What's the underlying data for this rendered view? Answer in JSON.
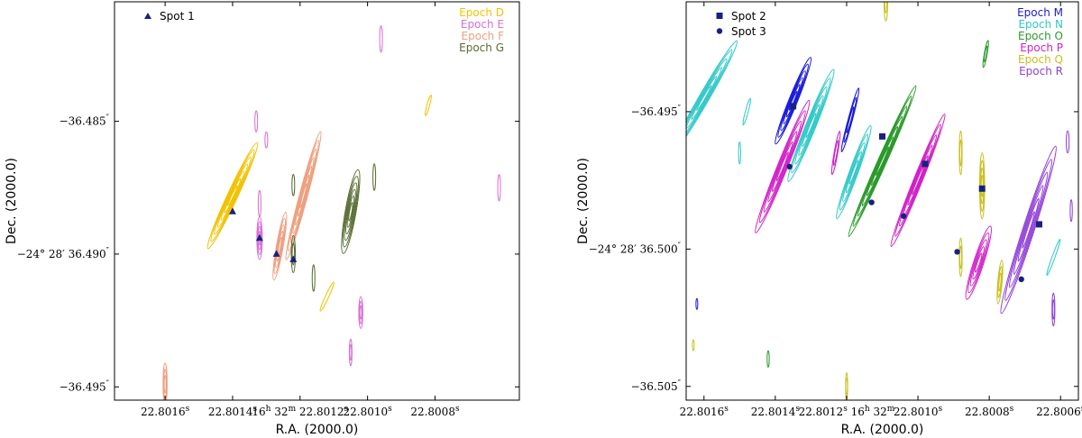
{
  "chart_data": [
    {
      "type": "scatter",
      "xlabel": "R.A. (2000.0)",
      "ylabel": "Dec. (2000.0)",
      "x_ticks": [
        {
          "main": "22.8016",
          "sup": "s"
        },
        {
          "main": "22.8014",
          "sup": "s"
        },
        {
          "main": "16",
          "sup": "h",
          "main2": " 32",
          "sup2": "m",
          "main3": " 22.8012",
          "sup3": "s"
        },
        {
          "main": "22.8010",
          "sup": "s"
        },
        {
          "main": "22.8008",
          "sup": "s"
        }
      ],
      "y_ticks": [
        {
          "main": "−36.485",
          "sup": "″"
        },
        {
          "main": "−24° 28′ 36.490",
          "sup": "″"
        },
        {
          "main": "−36.495",
          "sup": "″"
        }
      ],
      "xlim": [
        22.80175,
        22.80055
      ],
      "ylim": [
        -36.4955,
        -36.4805
      ],
      "legend": {
        "entries": [
          {
            "label": "Epoch D",
            "color": "#f2c200"
          },
          {
            "label": "Epoch E",
            "color": "#d86fd6"
          },
          {
            "label": "Epoch F",
            "color": "#eea080"
          },
          {
            "label": "Epoch G",
            "color": "#556b2f"
          }
        ],
        "marker_entries": [
          {
            "label": "Spot 1",
            "marker": "triangle",
            "color": "#1a2080"
          }
        ]
      },
      "spots": [
        {
          "name": "Spot 1",
          "marker": "triangle",
          "x": 22.8014,
          "y": -36.4884
        },
        {
          "name": "Spot 1",
          "marker": "triangle",
          "x": 22.80132,
          "y": -36.4894
        },
        {
          "name": "Spot 1",
          "marker": "triangle",
          "x": 22.80127,
          "y": -36.49
        },
        {
          "name": "Spot 1",
          "marker": "triangle",
          "x": 22.80122,
          "y": -36.4902
        }
      ],
      "contours": [
        {
          "color": "#f2c200",
          "x": 22.8014,
          "y": -36.4878,
          "rx": 1.5e-05,
          "ry": 0.0022,
          "angle": 25,
          "levels": 7
        },
        {
          "color": "#f2c200",
          "x": 22.80082,
          "y": -36.4844,
          "rx": 4e-06,
          "ry": 0.0004,
          "angle": 15,
          "levels": 1
        },
        {
          "color": "#f2c200",
          "x": 22.80112,
          "y": -36.4916,
          "rx": 5e-06,
          "ry": 0.0006,
          "angle": 25,
          "levels": 1
        },
        {
          "color": "#d86fd6",
          "x": 22.80132,
          "y": -36.4894,
          "rx": 8e-06,
          "ry": 0.0008,
          "angle": 0,
          "levels": 4
        },
        {
          "color": "#d86fd6",
          "x": 22.80133,
          "y": -36.485,
          "rx": 4e-06,
          "ry": 0.0004,
          "angle": 0,
          "levels": 1
        },
        {
          "color": "#d86fd6",
          "x": 22.8013,
          "y": -36.4857,
          "rx": 4e-06,
          "ry": 0.0003,
          "angle": 0,
          "levels": 1
        },
        {
          "color": "#d86fd6",
          "x": 22.80132,
          "y": -36.4881,
          "rx": 4e-06,
          "ry": 0.0005,
          "angle": 0,
          "levels": 1
        },
        {
          "color": "#d86fd6",
          "x": 22.80096,
          "y": -36.4819,
          "rx": 4e-06,
          "ry": 0.0005,
          "angle": 0,
          "levels": 1
        },
        {
          "color": "#d86fd6",
          "x": 22.80061,
          "y": -36.4875,
          "rx": 4e-06,
          "ry": 0.0005,
          "angle": 0,
          "levels": 1
        },
        {
          "color": "#d86fd6",
          "x": 22.80102,
          "y": -36.4922,
          "rx": 6e-06,
          "ry": 0.0006,
          "angle": 0,
          "levels": 3
        },
        {
          "color": "#d86fd6",
          "x": 22.80105,
          "y": -36.4937,
          "rx": 4e-06,
          "ry": 0.0005,
          "angle": 0,
          "levels": 2
        },
        {
          "color": "#eea080",
          "x": 22.80119,
          "y": -36.4878,
          "rx": 1.2e-05,
          "ry": 0.0025,
          "angle": 15,
          "levels": 7
        },
        {
          "color": "#eea080",
          "x": 22.80126,
          "y": -36.4897,
          "rx": 1e-05,
          "ry": 0.0013,
          "angle": 10,
          "levels": 5
        },
        {
          "color": "#eea080",
          "x": 22.8016,
          "y": -36.4949,
          "rx": 6e-06,
          "ry": 0.0008,
          "angle": 0,
          "levels": 3
        },
        {
          "color": "#556b2f",
          "x": 22.80105,
          "y": -36.4884,
          "rx": 1.6e-05,
          "ry": 0.0016,
          "angle": 10,
          "levels": 6
        },
        {
          "color": "#556b2f",
          "x": 22.80122,
          "y": -36.4874,
          "rx": 4e-06,
          "ry": 0.0004,
          "angle": 0,
          "levels": 1
        },
        {
          "color": "#556b2f",
          "x": 22.80098,
          "y": -36.4871,
          "rx": 4e-06,
          "ry": 0.0005,
          "angle": 0,
          "levels": 1
        },
        {
          "color": "#556b2f",
          "x": 22.80122,
          "y": -36.49,
          "rx": 6e-06,
          "ry": 0.0007,
          "angle": 0,
          "levels": 2
        },
        {
          "color": "#556b2f",
          "x": 22.80116,
          "y": -36.4909,
          "rx": 4e-06,
          "ry": 0.0005,
          "angle": 0,
          "levels": 1
        }
      ]
    },
    {
      "type": "scatter",
      "xlabel": "R.A. (2000.0)",
      "ylabel": "Dec. (2000.0)",
      "x_ticks": [
        {
          "main": "22.8016",
          "sup": "s"
        },
        {
          "main": "22.8014",
          "sup": "s"
        },
        {
          "main": "22.8012",
          "sup": "s",
          "main2": " 16",
          "sup2": "h",
          "main3": " 32",
          "sup3": "m"
        },
        {
          "main": "22.8010",
          "sup": "s"
        },
        {
          "main": "22.8008",
          "sup": "s"
        },
        {
          "main": "22.8006",
          "sup": "s"
        }
      ],
      "y_ticks": [
        {
          "main": "−36.495",
          "sup": "″"
        },
        {
          "main": "−24° 28′ 36.500",
          "sup": "″"
        },
        {
          "main": "−36.505",
          "sup": "″"
        }
      ],
      "xlim": [
        22.80165,
        22.80055
      ],
      "ylim": [
        -36.5055,
        -36.491
      ],
      "legend": {
        "entries": [
          {
            "label": "Epoch M",
            "color": "#1a1adb"
          },
          {
            "label": "Epoch N",
            "color": "#30c8c8"
          },
          {
            "label": "Epoch O",
            "color": "#2a9a2a"
          },
          {
            "label": "Epoch P",
            "color": "#d020c8"
          },
          {
            "label": "Epoch Q",
            "color": "#c8c020"
          },
          {
            "label": "Epoch R",
            "color": "#9040d8"
          }
        ],
        "marker_entries": [
          {
            "label": "Spot 2",
            "marker": "square",
            "color": "#1a2080"
          },
          {
            "label": "Spot 3",
            "marker": "circle",
            "color": "#1a2080"
          }
        ]
      },
      "spots": [
        {
          "name": "Spot 2",
          "marker": "square",
          "x": 22.80135,
          "y": -36.4948
        },
        {
          "name": "Spot 2",
          "marker": "square",
          "x": 22.8011,
          "y": -36.4959
        },
        {
          "name": "Spot 2",
          "marker": "square",
          "x": 22.80098,
          "y": -36.4969
        },
        {
          "name": "Spot 2",
          "marker": "square",
          "x": 22.80082,
          "y": -36.4978
        },
        {
          "name": "Spot 2",
          "marker": "square",
          "x": 22.80066,
          "y": -36.4991
        },
        {
          "name": "Spot 3",
          "marker": "circle",
          "x": 22.80136,
          "y": -36.497
        },
        {
          "name": "Spot 3",
          "marker": "circle",
          "x": 22.80113,
          "y": -36.4983
        },
        {
          "name": "Spot 3",
          "marker": "circle",
          "x": 22.80104,
          "y": -36.4988
        },
        {
          "name": "Spot 3",
          "marker": "circle",
          "x": 22.80089,
          "y": -36.5001
        },
        {
          "name": "Spot 3",
          "marker": "circle",
          "x": 22.80071,
          "y": -36.5011
        }
      ],
      "contours": [
        {
          "color": "#30c8c8",
          "x": 22.8016,
          "y": -36.4945,
          "rx": 1.4e-05,
          "ry": 0.0024,
          "angle": 30,
          "levels": 6
        },
        {
          "color": "#30c8c8",
          "x": 22.8013,
          "y": -36.4955,
          "rx": 1.4e-05,
          "ry": 0.0022,
          "angle": 22,
          "levels": 6
        },
        {
          "color": "#30c8c8",
          "x": 22.80118,
          "y": -36.4972,
          "rx": 1.2e-05,
          "ry": 0.0018,
          "angle": 20,
          "levels": 5
        },
        {
          "color": "#30c8c8",
          "x": 22.80148,
          "y": -36.495,
          "rx": 4e-06,
          "ry": 0.0005,
          "angle": 15,
          "levels": 1
        },
        {
          "color": "#30c8c8",
          "x": 22.8015,
          "y": -36.4965,
          "rx": 3e-06,
          "ry": 0.0004,
          "angle": 0,
          "levels": 1
        },
        {
          "color": "#30c8c8",
          "x": 22.80062,
          "y": -36.5003,
          "rx": 4e-06,
          "ry": 0.0007,
          "angle": 20,
          "levels": 1
        },
        {
          "color": "#1a1adb",
          "x": 22.80135,
          "y": -36.4946,
          "rx": 1.2e-05,
          "ry": 0.0017,
          "angle": 22,
          "levels": 6
        },
        {
          "color": "#1a1adb",
          "x": 22.80119,
          "y": -36.4953,
          "rx": 6e-06,
          "ry": 0.0012,
          "angle": 15,
          "levels": 3
        },
        {
          "color": "#1a1adb",
          "x": 22.80162,
          "y": -36.502,
          "rx": 2e-06,
          "ry": 0.0002,
          "angle": 0,
          "levels": 1
        },
        {
          "color": "#2a9a2a",
          "x": 22.8011,
          "y": -36.4968,
          "rx": 1.2e-05,
          "ry": 0.003,
          "angle": 24,
          "levels": 7
        },
        {
          "color": "#2a9a2a",
          "x": 22.80081,
          "y": -36.4929,
          "rx": 4e-06,
          "ry": 0.0005,
          "angle": 10,
          "levels": 2
        },
        {
          "color": "#2a9a2a",
          "x": 22.80142,
          "y": -36.504,
          "rx": 3e-06,
          "ry": 0.0003,
          "angle": 0,
          "levels": 1
        },
        {
          "color": "#d020c8",
          "x": 22.80138,
          "y": -36.497,
          "rx": 1.4e-05,
          "ry": 0.0026,
          "angle": 22,
          "levels": 6
        },
        {
          "color": "#d020c8",
          "x": 22.801,
          "y": -36.4975,
          "rx": 1.2e-05,
          "ry": 0.0026,
          "angle": 22,
          "levels": 6
        },
        {
          "color": "#d020c8",
          "x": 22.80083,
          "y": -36.5005,
          "rx": 1.4e-05,
          "ry": 0.0014,
          "angle": 18,
          "levels": 5
        },
        {
          "color": "#d020c8",
          "x": 22.80123,
          "y": -36.4965,
          "rx": 5e-06,
          "ry": 0.0008,
          "angle": 10,
          "levels": 2
        },
        {
          "color": "#c8c020",
          "x": 22.80082,
          "y": -36.4977,
          "rx": 7e-06,
          "ry": 0.0012,
          "angle": 0,
          "levels": 4
        },
        {
          "color": "#c8c020",
          "x": 22.80088,
          "y": -36.4965,
          "rx": 4e-06,
          "ry": 0.0008,
          "angle": 0,
          "levels": 2
        },
        {
          "color": "#c8c020",
          "x": 22.80088,
          "y": -36.5003,
          "rx": 4e-06,
          "ry": 0.0007,
          "angle": 0,
          "levels": 2
        },
        {
          "color": "#c8c020",
          "x": 22.80077,
          "y": -36.5012,
          "rx": 6e-06,
          "ry": 0.0008,
          "angle": 5,
          "levels": 3
        },
        {
          "color": "#c8c020",
          "x": 22.80109,
          "y": -36.491,
          "rx": 5e-06,
          "ry": 0.0007,
          "angle": 0,
          "levels": 2
        },
        {
          "color": "#c8c020",
          "x": 22.8012,
          "y": -36.505,
          "rx": 3e-06,
          "ry": 0.0005,
          "angle": 0,
          "levels": 2
        },
        {
          "color": "#c8c020",
          "x": 22.80163,
          "y": -36.5035,
          "rx": 2e-06,
          "ry": 0.0002,
          "angle": 0,
          "levels": 1
        },
        {
          "color": "#9040d8",
          "x": 22.80069,
          "y": -36.4993,
          "rx": 1.6e-05,
          "ry": 0.0032,
          "angle": 18,
          "levels": 6
        },
        {
          "color": "#9040d8",
          "x": 22.80062,
          "y": -36.5022,
          "rx": 4e-06,
          "ry": 0.0006,
          "angle": 0,
          "levels": 2
        },
        {
          "color": "#9040d8",
          "x": 22.80058,
          "y": -36.4961,
          "rx": 4e-06,
          "ry": 0.0004,
          "angle": 0,
          "levels": 1
        },
        {
          "color": "#9040d8",
          "x": 22.80057,
          "y": -36.4986,
          "rx": 3e-06,
          "ry": 0.0004,
          "angle": 0,
          "levels": 1
        }
      ]
    }
  ]
}
